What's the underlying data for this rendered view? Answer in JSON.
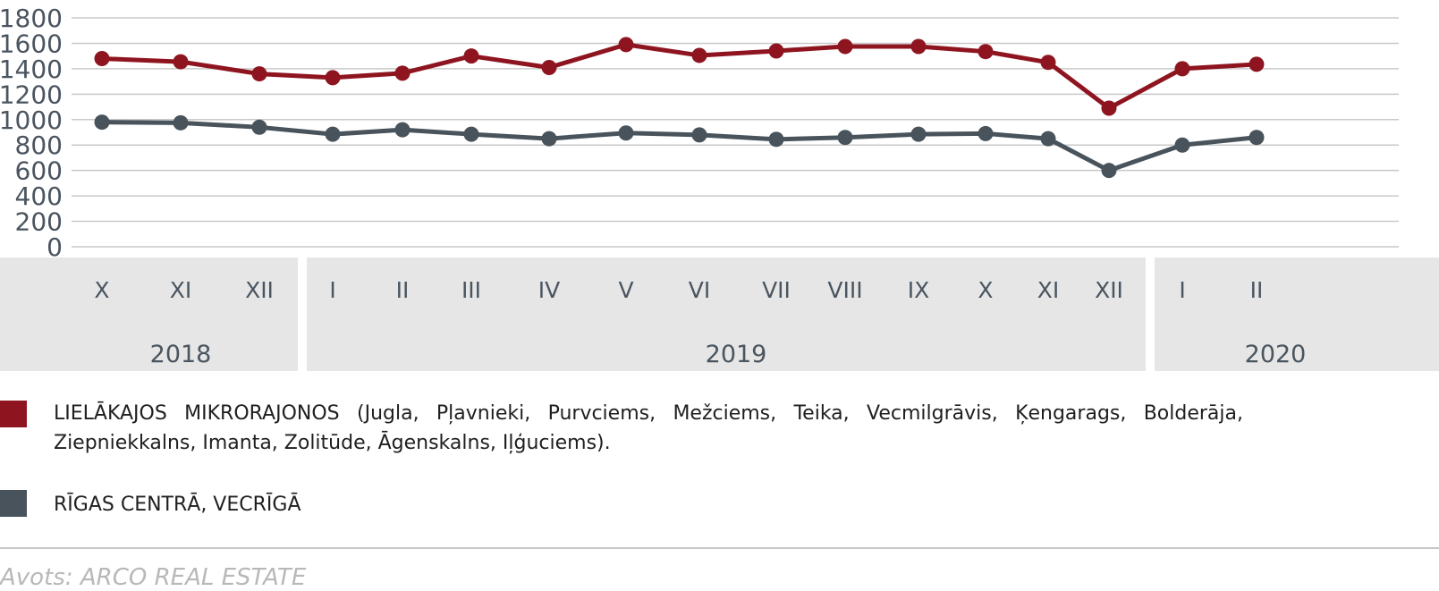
{
  "colors": {
    "series_red": "#8e1520",
    "series_gray": "#48535c",
    "band": "#e6e6e6",
    "grid": "#c9c9c9",
    "axis_text": "#4a5560"
  },
  "chart_data": {
    "type": "line",
    "ylim": [
      0,
      1800
    ],
    "y_ticks": [
      "1800",
      "1600",
      "1400",
      "1200",
      "1000",
      "800",
      "600",
      "400",
      "200",
      "0"
    ],
    "grid": true,
    "x": [
      "X",
      "XI",
      "XII",
      "I",
      "II",
      "III",
      "IV",
      "V",
      "VI",
      "VII",
      "VIII",
      "IX",
      "X",
      "XI",
      "XII",
      "I",
      "II"
    ],
    "years": [
      {
        "label": "2018",
        "months": 3
      },
      {
        "label": "2019",
        "months": 12
      },
      {
        "label": "2020",
        "months": 2
      }
    ],
    "series": [
      {
        "name": "LIELĀKAJOS MIKRORAJONOS (Jugla, Pļavnieki, Purvciems, Mežciems, Teika, Vecmilgrāvis, Ķengarags, Bolderāja, Ziepniekkalns, Imanta, Zolitūde, Āgenskalns, Iļģuciems).",
        "color": "#8e1520",
        "values": [
          1480,
          1455,
          1360,
          1330,
          1365,
          1500,
          1410,
          1590,
          1505,
          1540,
          1575,
          1575,
          1535,
          1450,
          1090,
          1400,
          1435
        ]
      },
      {
        "name": "RĪGAS CENTRĀ, VECRĪGĀ",
        "color": "#48535c",
        "values": [
          980,
          975,
          940,
          885,
          920,
          885,
          850,
          895,
          880,
          845,
          860,
          885,
          890,
          850,
          600,
          800,
          860
        ]
      }
    ],
    "legend_position": "bottom"
  },
  "source": "Avots: ARCO REAL ESTATE"
}
